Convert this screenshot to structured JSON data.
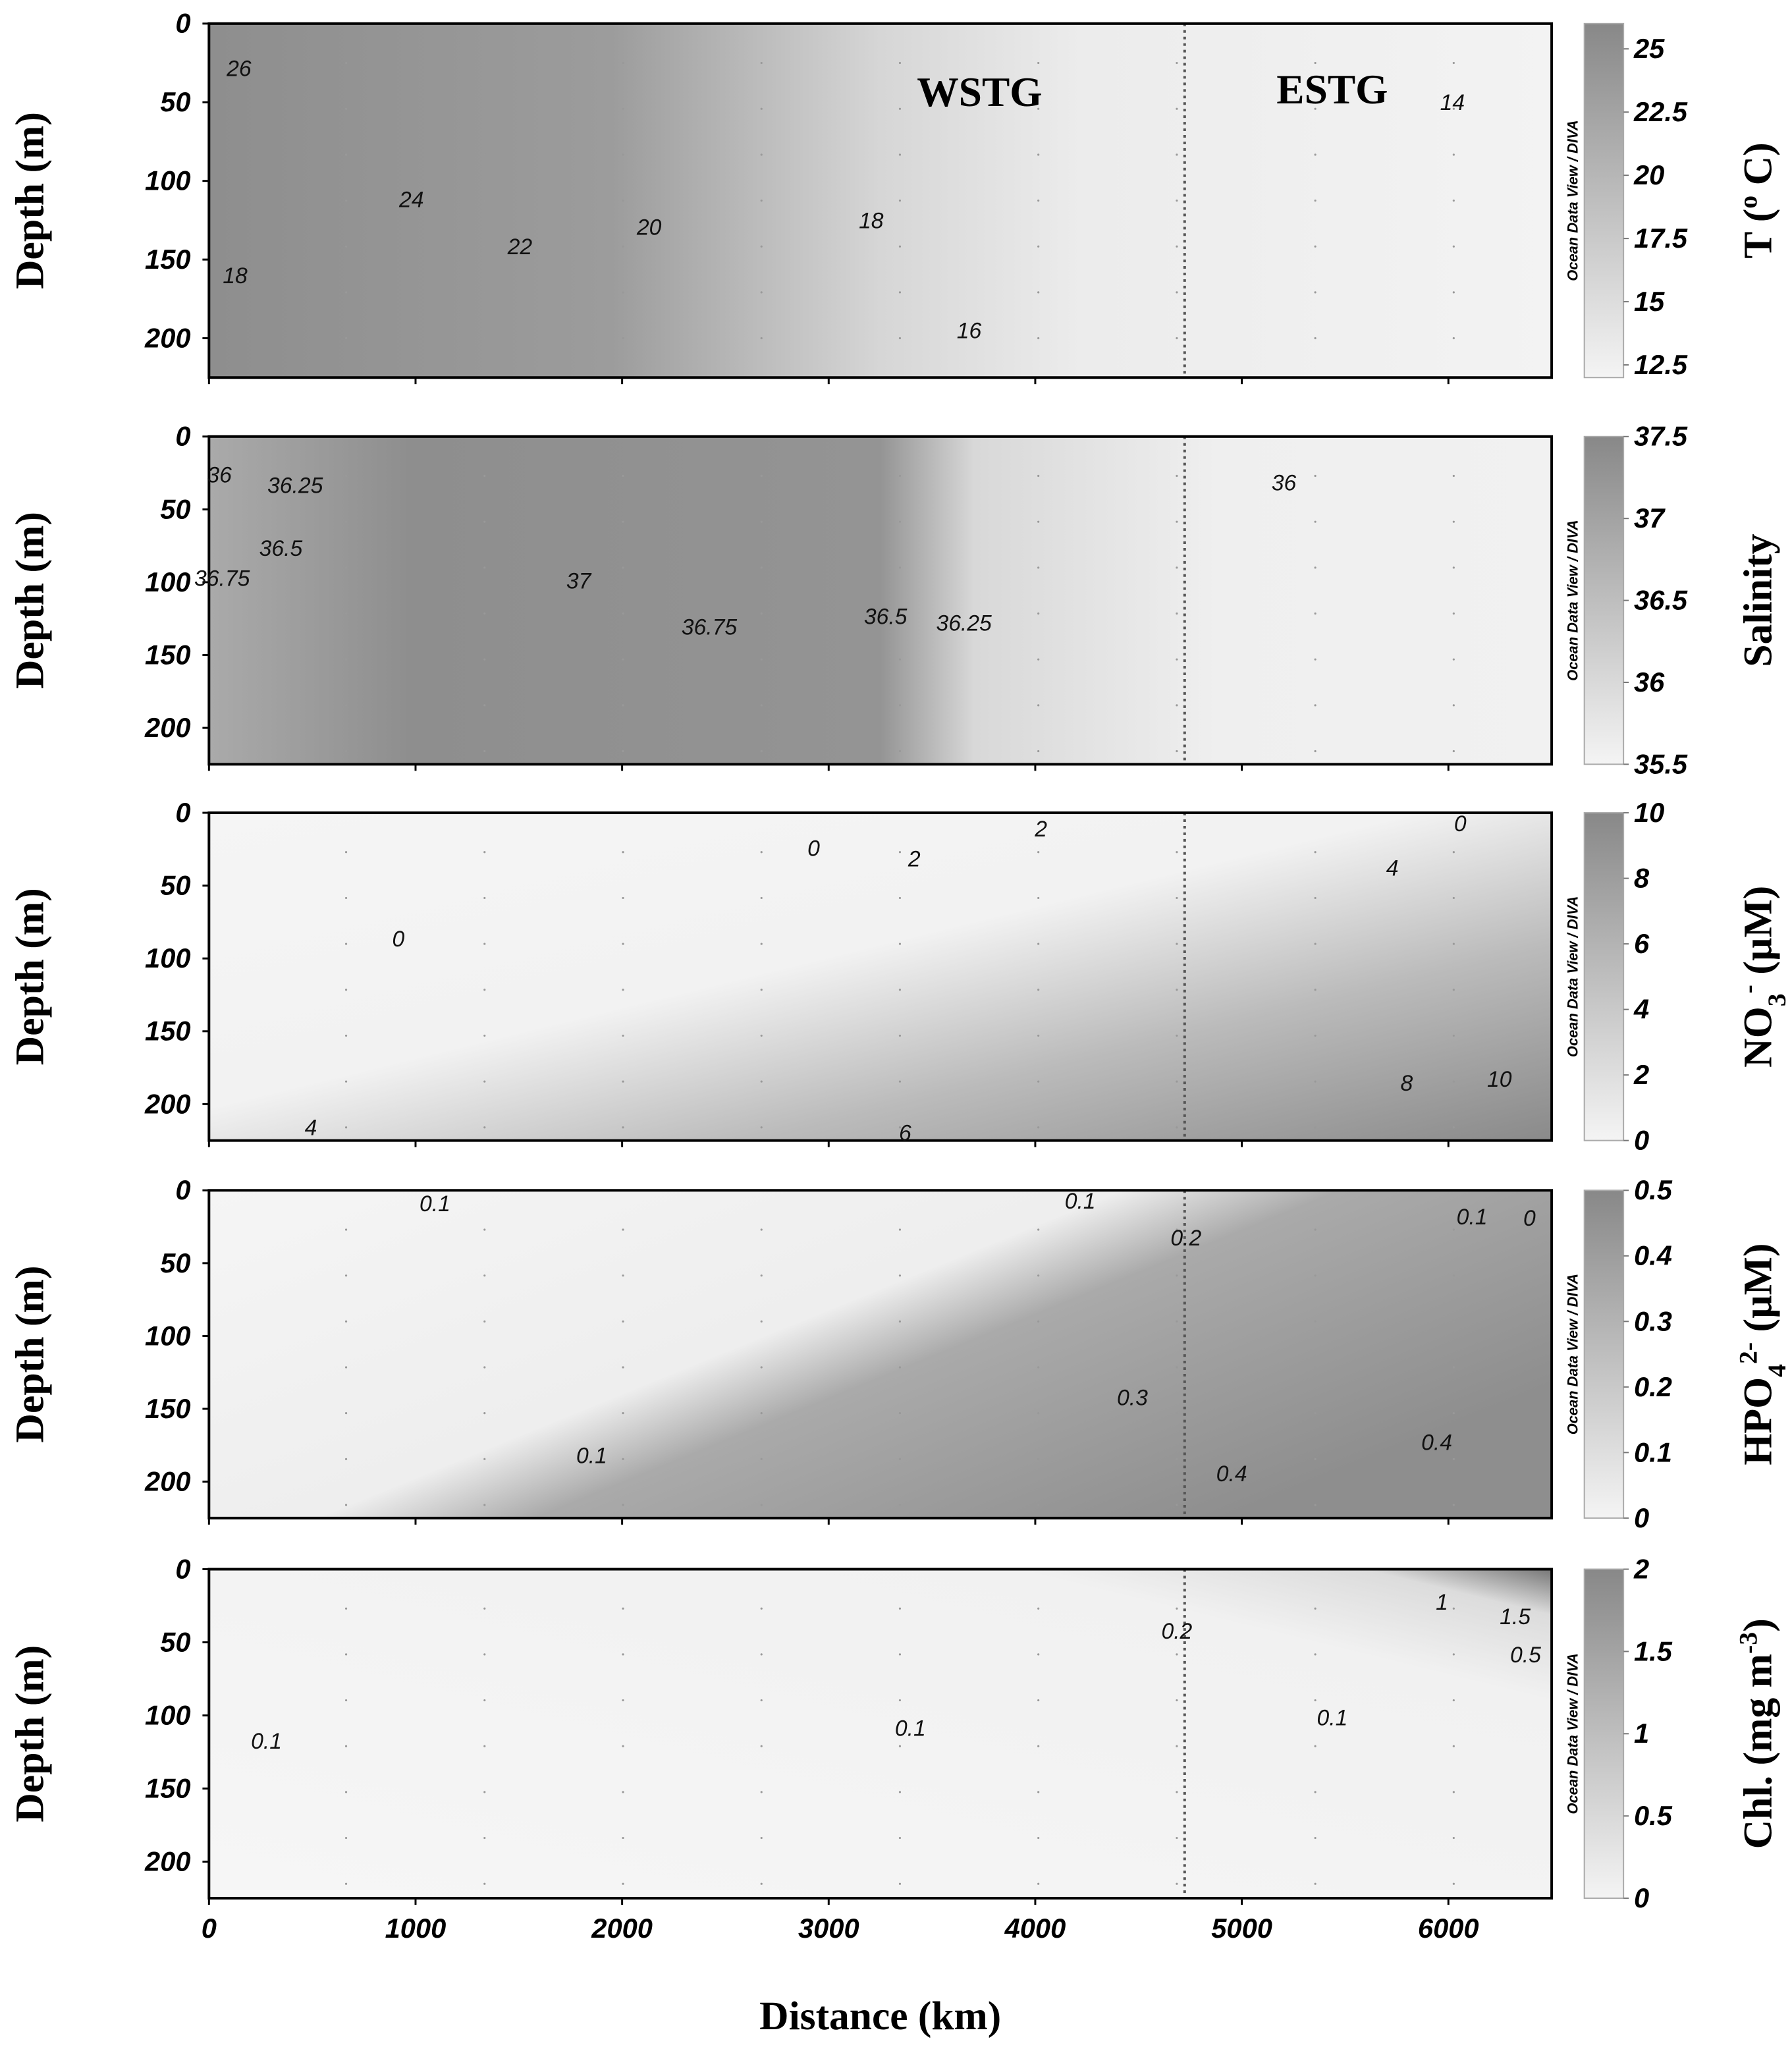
{
  "chart_data": [
    {
      "type": "contour",
      "ylabel": "Depth (m)",
      "ylim": [
        0,
        225
      ],
      "yticks": [
        0,
        50,
        100,
        150,
        200
      ],
      "xlim": [
        0,
        6500
      ],
      "colorbar": {
        "label": [
          {
            "text": "T ("
          },
          {
            "text": "o",
            "sup": true
          },
          {
            "text": " C)"
          }
        ],
        "lim": [
          12,
          26
        ],
        "ticks": [
          12.5,
          15,
          17.5,
          20,
          22.5,
          25
        ],
        "credit": "Ocean Data View / DIVA"
      },
      "contour_labels": [
        26,
        24,
        22,
        20,
        18,
        16,
        18,
        14
      ],
      "annotations": [
        "WSTG",
        "ESTG"
      ]
    },
    {
      "type": "contour",
      "ylabel": "Depth (m)",
      "ylim": [
        0,
        225
      ],
      "yticks": [
        0,
        50,
        100,
        150,
        200
      ],
      "xlim": [
        0,
        6500
      ],
      "colorbar": {
        "label": [
          {
            "text": "Salinity"
          }
        ],
        "lim": [
          35.5,
          37.5
        ],
        "ticks": [
          35.5,
          36,
          36.5,
          37,
          37.5
        ],
        "credit": "Ocean Data View / DIVA"
      },
      "contour_labels": [
        36,
        36.25,
        36.5,
        36.75,
        37,
        36.75,
        36.5,
        36.25,
        36
      ]
    },
    {
      "type": "contour",
      "ylabel": "Depth (m)",
      "ylim": [
        0,
        225
      ],
      "yticks": [
        0,
        50,
        100,
        150,
        200
      ],
      "xlim": [
        0,
        6500
      ],
      "colorbar": {
        "label": [
          {
            "text": "NO"
          },
          {
            "text": "3",
            "sub": true
          },
          {
            "text": "-",
            "sup": true
          },
          {
            "text": " (µM)"
          }
        ],
        "lim": [
          0,
          10
        ],
        "ticks": [
          0,
          2,
          4,
          6,
          8,
          10
        ],
        "credit": "Ocean Data View / DIVA"
      },
      "contour_labels": [
        0,
        2,
        2,
        0,
        4,
        0,
        8,
        10,
        4,
        6
      ]
    },
    {
      "type": "contour",
      "ylabel": "Depth (m)",
      "ylim": [
        0,
        225
      ],
      "yticks": [
        0,
        50,
        100,
        150,
        200
      ],
      "xlim": [
        0,
        6500
      ],
      "colorbar": {
        "label": [
          {
            "text": "HPO"
          },
          {
            "text": "4",
            "sub": true
          },
          {
            "text": "2-",
            "sup": true
          },
          {
            "text": " (µM)"
          }
        ],
        "lim": [
          0,
          0.5
        ],
        "ticks": [
          0,
          0.1,
          0.2,
          0.3,
          0.4,
          0.5
        ],
        "credit": "Ocean Data View / DIVA"
      },
      "contour_labels": [
        0.1,
        0.1,
        0.2,
        0.1,
        0,
        0.3,
        0.1,
        0.4,
        0.4
      ]
    },
    {
      "type": "contour",
      "ylabel": "Depth (m)",
      "ylim": [
        0,
        225
      ],
      "yticks": [
        0,
        50,
        100,
        150,
        200
      ],
      "xlim": [
        0,
        6500
      ],
      "xticks": [
        0,
        1000,
        2000,
        3000,
        4000,
        5000,
        6000
      ],
      "xlabel": "Distance (km)",
      "colorbar": {
        "label": [
          {
            "text": "Chl. (mg m"
          },
          {
            "text": "-3",
            "sup": true
          },
          {
            "text": ")"
          }
        ],
        "lim": [
          0,
          2
        ],
        "ticks": [
          0,
          0.5,
          1,
          1.5,
          2
        ],
        "credit": "Ocean Data View / DIVA"
      },
      "contour_labels": [
        0.2,
        1,
        1.5,
        0.5,
        0.1,
        0.1,
        0.1
      ]
    }
  ]
}
